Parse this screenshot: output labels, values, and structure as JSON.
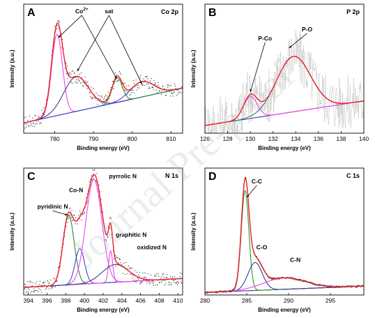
{
  "watermark": "Journal Pre-proof",
  "chart_data": [
    {
      "type": "line",
      "panel_label": "A",
      "tag": "Co 2p",
      "xlabel": "Binding energy (eV)",
      "ylabel": "Intensity (a.u.)",
      "xlim": [
        772,
        813
      ],
      "ylim": [
        0,
        1.0
      ],
      "xticks": [
        780,
        790,
        800,
        810
      ],
      "baseline": [
        [
          772,
          0.08
        ],
        [
          813,
          0.35
        ]
      ],
      "noise_amp": 0.05,
      "peaks": [
        {
          "center": 780.6,
          "height": 0.63,
          "width": 1.4,
          "color": "#ee44ee"
        },
        {
          "center": 785.5,
          "height": 0.27,
          "width": 3.2,
          "color": "#3a3a9a"
        },
        {
          "center": 796.1,
          "height": 0.19,
          "width": 1.3,
          "color": "#2a9a2a"
        },
        {
          "center": 802.5,
          "height": 0.12,
          "width": 3.0,
          "color": "#4a4ad0"
        }
      ],
      "annotations": [
        {
          "text": "Co",
          "sup": "2+",
          "tx": 787,
          "ty": 0.93,
          "targets": [
            [
              780.9,
              0.74
            ],
            [
              796,
              0.42
            ]
          ]
        },
        {
          "text": "sat",
          "tx": 794,
          "ty": 0.93,
          "targets": [
            [
              785.8,
              0.48
            ],
            [
              802.5,
              0.38
            ]
          ]
        }
      ]
    },
    {
      "type": "line",
      "panel_label": "B",
      "tag": "P 2p",
      "xlabel": "Binding energy (eV)",
      "ylabel": "Intensity (a.u.)",
      "xlim": [
        126,
        140
      ],
      "ylim": [
        0,
        1.0
      ],
      "xticks": [
        126,
        128,
        130,
        132,
        134,
        136,
        138,
        140
      ],
      "baseline": [
        [
          126,
          0.06
        ],
        [
          140,
          0.25
        ]
      ],
      "noise_amp": 0.22,
      "noise_style": "dashed",
      "peaks": [
        {
          "center": 130.0,
          "height": 0.17,
          "width": 0.6,
          "color": "#ee44ee"
        },
        {
          "center": 133.8,
          "height": 0.43,
          "width": 1.5,
          "color": "#2f7a6a"
        }
      ],
      "annotations": [
        {
          "text": "P-Co",
          "tx": 131.3,
          "ty": 0.72,
          "targets": [
            [
              130.0,
              0.32
            ]
          ]
        },
        {
          "text": "P-O",
          "tx": 135.0,
          "ty": 0.79,
          "targets": [
            [
              133.4,
              0.66
            ]
          ]
        }
      ]
    },
    {
      "type": "line",
      "panel_label": "C",
      "tag": "N 1s",
      "xlabel": "Binding energy (eV)",
      "ylabel": "Intensity (a.u.)",
      "xlim": [
        393.5,
        410.5
      ],
      "ylim": [
        0,
        1.0
      ],
      "xticks": [
        394,
        396,
        398,
        400,
        402,
        404,
        406,
        408,
        410
      ],
      "baseline": [
        [
          393.5,
          0.06
        ],
        [
          410.5,
          0.13
        ]
      ],
      "noise_amp": 0.05,
      "peaks": [
        {
          "center": 398.3,
          "height": 0.55,
          "width": 0.6,
          "color": "#2a8a2a"
        },
        {
          "center": 399.5,
          "height": 0.28,
          "width": 0.5,
          "color": "#4444cc"
        },
        {
          "center": 401.0,
          "height": 0.82,
          "width": 0.85,
          "color": "#ee44ee"
        },
        {
          "center": 402.8,
          "height": 0.25,
          "width": 0.22,
          "color": "#ee44ee"
        },
        {
          "center": 403.3,
          "height": 0.14,
          "width": 1.4,
          "color": "#3a3a9a"
        }
      ],
      "annotations": [
        {
          "text": "pyrrolic N",
          "tx": 404.1,
          "ty": 0.92,
          "targets": []
        },
        {
          "text": "Co-N",
          "tx": 399.1,
          "ty": 0.81,
          "targets": []
        },
        {
          "text": "pyridinic N",
          "tx": 396.6,
          "ty": 0.68,
          "targets": [
            [
              398.2,
              0.63
            ]
          ]
        },
        {
          "text": "graphitic N",
          "tx": 405.0,
          "ty": 0.46,
          "targets": []
        },
        {
          "text": "oxidized N",
          "tx": 407.2,
          "ty": 0.36,
          "targets": []
        }
      ]
    },
    {
      "type": "line",
      "panel_label": "D",
      "tag": "C 1s",
      "xlabel": "Binding energy (eV)",
      "ylabel": "Intensity (a.u.)",
      "xlim": [
        280,
        299
      ],
      "ylim": [
        0,
        1.0
      ],
      "xticks": [
        280,
        285,
        290,
        295
      ],
      "baseline": [
        [
          280,
          0.02
        ],
        [
          299,
          0.07
        ]
      ],
      "noise_amp": 0.008,
      "peaks": [
        {
          "center": 284.8,
          "height": 0.79,
          "width": 0.45,
          "color": "#2a9a2a"
        },
        {
          "center": 286.0,
          "height": 0.22,
          "width": 0.85,
          "color": "#3a3a9a"
        },
        {
          "center": 289.5,
          "height": 0.09,
          "width": 2.5,
          "color": "#ee44ee"
        }
      ],
      "annotations": [
        {
          "text": "C-C",
          "tx": 286.2,
          "ty": 0.88,
          "targets": [
            [
              285.0,
              0.77
            ]
          ]
        },
        {
          "text": "C-O",
          "tx": 286.8,
          "ty": 0.36,
          "targets": []
        },
        {
          "text": "C-N",
          "tx": 290.8,
          "ty": 0.26,
          "targets": []
        }
      ]
    }
  ]
}
